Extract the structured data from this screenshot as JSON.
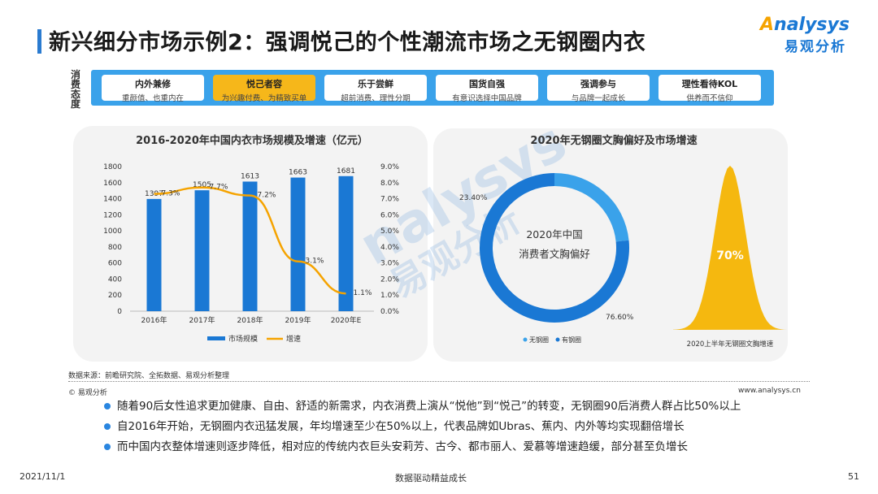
{
  "title": "新兴细分市场示例2：强调悦己的个性潮流市场之无钢圈内衣",
  "logo": {
    "en": "nalysys",
    "cn": "易观分析"
  },
  "attitude_label": "消费态度",
  "attitudes": [
    {
      "title": "内外兼修",
      "desc": "重颜值、也重内在",
      "highlight": false
    },
    {
      "title": "悦己者容",
      "desc": "为兴趣付费、为精致买单",
      "highlight": true
    },
    {
      "title": "乐于尝鲜",
      "desc": "超前消费、理性分期",
      "highlight": false
    },
    {
      "title": "国货自强",
      "desc": "有意识选择中国品牌",
      "highlight": false
    },
    {
      "title": "强调参与",
      "desc": "与品牌一起成长",
      "highlight": false
    },
    {
      "title": "理性看待KOL",
      "desc": "供养而不信仰",
      "highlight": false
    }
  ],
  "watermark": {
    "en": "nalysys",
    "cn": "易观分析"
  },
  "chart_data": [
    {
      "type": "bar",
      "title": "2016-2020年中国内衣市场规模及增速（亿元）",
      "categories": [
        "2016年",
        "2017年",
        "2018年",
        "2019年",
        "2020年E"
      ],
      "series": [
        {
          "name": "市场规模",
          "type": "bar",
          "values": [
            1397,
            1505,
            1613,
            1663,
            1681
          ],
          "labels": [
            "1397",
            "1505",
            "1613",
            "1663",
            "1681"
          ],
          "color": "#1a78d4"
        },
        {
          "name": "增速",
          "type": "line",
          "values": [
            7.3,
            7.7,
            7.2,
            3.1,
            1.1
          ],
          "labels": [
            "7.3%",
            "7.7%",
            "7.2%",
            "3.1%",
            "1.1%"
          ],
          "color": "#f5a300"
        }
      ],
      "y_left": {
        "ticks": [
          "0",
          "200",
          "400",
          "600",
          "800",
          "1000",
          "1200",
          "1400",
          "1600",
          "1800"
        ],
        "range": [
          0,
          1800
        ]
      },
      "y_right": {
        "ticks": [
          "0.0%",
          "1.0%",
          "2.0%",
          "3.0%",
          "4.0%",
          "5.0%",
          "6.0%",
          "7.0%",
          "8.0%",
          "9.0%"
        ],
        "range": [
          0,
          9
        ]
      },
      "legend_position": "bottom"
    },
    {
      "type": "pie",
      "title": "2020年无钢圈文胸偏好及市场增速",
      "center_label": "2020年中国消费者文胸偏好",
      "slices": [
        {
          "name": "无钢圈",
          "value": 23.4,
          "label": "23.40%",
          "color": "#3aa2ea"
        },
        {
          "name": "有钢圈",
          "value": 76.6,
          "label": "76.60%",
          "color": "#1a78d4"
        }
      ],
      "legend_position": "bottom"
    },
    {
      "type": "area",
      "value_label": "70%",
      "caption": "2020上半年无钢圈文胸增速",
      "color": "#f5b80f"
    }
  ],
  "source": "数据来源：前瞻研究院、全拓数据、易观分析整理",
  "copyright": "© 易观分析",
  "website": "www.analysys.cn",
  "bullets": [
    "随着90后女性追求更加健康、自由、舒适的新需求，内衣消费上演从“悦他”到“悦己”的转变，无钢圈90后消费人群占比50%以上",
    "自2016年开始，无钢圈内衣迅猛发展，年均增速至少在50%以上，代表品牌如Ubras、蕉内、内外等均实现翻倍增长",
    "而中国内衣整体增速则逐步降低，相对应的传统内衣巨头安莉芳、古今、都市丽人、爱慕等增速趋缓，部分甚至负增长"
  ],
  "footer": {
    "date": "2021/11/1",
    "center": "数据驱动精益成长",
    "page": "51"
  }
}
